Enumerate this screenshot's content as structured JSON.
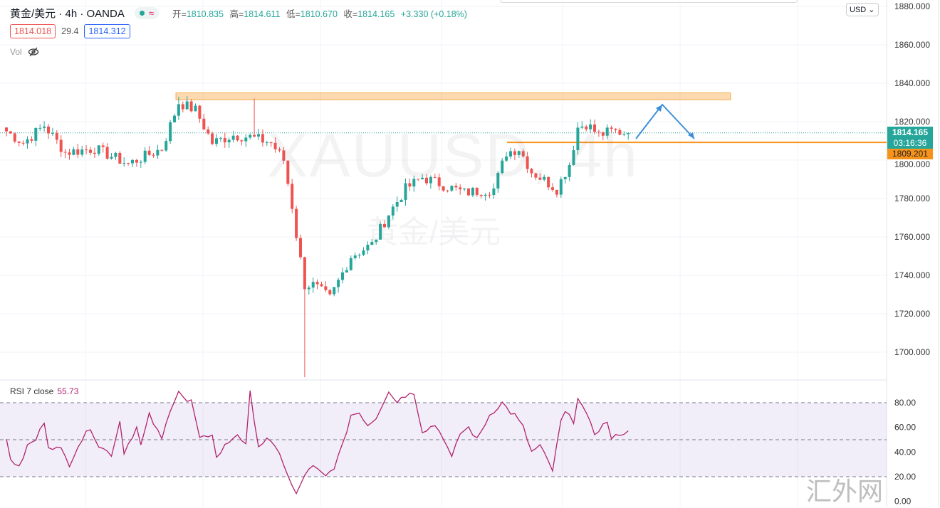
{
  "header": {
    "symbol": "黄金/美元 · 4h · OANDA",
    "open_label": "开=",
    "open": "1810.835",
    "high_label": "高=",
    "high": "1814.611",
    "low_label": "低=",
    "low": "1810.670",
    "close_label": "收=",
    "close": "1814.165",
    "change": "+3.330 (+0.18%)"
  },
  "quote": {
    "bid": "1814.018",
    "spread": "29.4",
    "ask": "1814.312"
  },
  "volume": {
    "label": "Vol"
  },
  "rsi_legend": {
    "label": "RSI 7 close",
    "value": "55.73"
  },
  "currency": "USD ⌄",
  "price_tag": {
    "price": "1814.165",
    "countdown": "03:16:36"
  },
  "level_tag": "1809.201",
  "watermark": {
    "ticker": "XAUUSD, 4h",
    "name": "黄金/美元"
  },
  "site_mark": "汇外网",
  "colors": {
    "up": "#26a69a",
    "down": "#ef5350",
    "level": "#f7931a",
    "rsi": "#b0246e",
    "arrow": "#3d8fd9"
  },
  "chart_data": [
    {
      "type": "candlestick",
      "title": "XAUUSD 4h",
      "y_ticks": [
        1700,
        1720,
        1740,
        1760,
        1780,
        1800,
        1820,
        1840,
        1860,
        1880
      ],
      "y_tick_labels": [
        "1700.000",
        "1720.000",
        "1740.000",
        "1760.000",
        "1780.000",
        "1800.000",
        "1820.000",
        "1840.000",
        "1860.000",
        "1880.000"
      ],
      "ylim": [
        1690,
        1880
      ],
      "bars": 150,
      "close_keypoints": [
        [
          0,
          1815
        ],
        [
          4,
          1809
        ],
        [
          9,
          1818
        ],
        [
          14,
          1804
        ],
        [
          21,
          1806
        ],
        [
          29,
          1798
        ],
        [
          37,
          1806
        ],
        [
          41,
          1830
        ],
        [
          45,
          1826
        ],
        [
          49,
          1809
        ],
        [
          54,
          1813
        ],
        [
          58,
          1812
        ],
        [
          63,
          1809
        ],
        [
          66,
          1800
        ],
        [
          68,
          1776
        ],
        [
          69,
          1761
        ],
        [
          71,
          1735
        ],
        [
          73,
          1735
        ],
        [
          77,
          1728
        ],
        [
          82,
          1750
        ],
        [
          87,
          1756
        ],
        [
          91,
          1772
        ],
        [
          95,
          1785
        ],
        [
          99,
          1791
        ],
        [
          104,
          1787
        ],
        [
          109,
          1783
        ],
        [
          116,
          1785
        ],
        [
          119,
          1804
        ],
        [
          122,
          1806
        ],
        [
          125,
          1794
        ],
        [
          131,
          1785
        ],
        [
          134,
          1798
        ],
        [
          136,
          1817
        ],
        [
          138,
          1819
        ],
        [
          141,
          1813
        ],
        [
          144,
          1815
        ],
        [
          148,
          1814.165
        ]
      ],
      "spike_wicks": [
        [
          41,
          1833
        ],
        [
          59,
          1832
        ],
        [
          71,
          1687
        ]
      ],
      "resistance_zone": [
        1832.5,
        1835
      ],
      "support_level": 1809.201,
      "last_price": 1814.165
    },
    {
      "type": "line",
      "title": "RSI 7 close",
      "ylim": [
        0,
        100
      ],
      "y_ticks": [
        0,
        20,
        40,
        60,
        80
      ],
      "y_tick_labels": [
        "0.00",
        "20.00",
        "40.00",
        "60.00",
        "80.00"
      ],
      "band": [
        20,
        80
      ],
      "mid": 50,
      "keypoints": [
        [
          0,
          50
        ],
        [
          1,
          35
        ],
        [
          3,
          27
        ],
        [
          5,
          45
        ],
        [
          7,
          50
        ],
        [
          9,
          65
        ],
        [
          10,
          45
        ],
        [
          13,
          42
        ],
        [
          15,
          30
        ],
        [
          17,
          45
        ],
        [
          20,
          60
        ],
        [
          22,
          45
        ],
        [
          25,
          38
        ],
        [
          27,
          65
        ],
        [
          28,
          40
        ],
        [
          31,
          60
        ],
        [
          32,
          45
        ],
        [
          34,
          70
        ],
        [
          37,
          50
        ],
        [
          39,
          75
        ],
        [
          41,
          90
        ],
        [
          43,
          80
        ],
        [
          44,
          82
        ],
        [
          46,
          50
        ],
        [
          49,
          55
        ],
        [
          50,
          35
        ],
        [
          52,
          45
        ],
        [
          55,
          55
        ],
        [
          57,
          45
        ],
        [
          58,
          88
        ],
        [
          60,
          45
        ],
        [
          62,
          50
        ],
        [
          65,
          40
        ],
        [
          67,
          20
        ],
        [
          69,
          5
        ],
        [
          71,
          22
        ],
        [
          73,
          28
        ],
        [
          76,
          20
        ],
        [
          78,
          28
        ],
        [
          80,
          45
        ],
        [
          82,
          70
        ],
        [
          84,
          72
        ],
        [
          86,
          62
        ],
        [
          88,
          68
        ],
        [
          91,
          90
        ],
        [
          93,
          80
        ],
        [
          94,
          85
        ],
        [
          97,
          88
        ],
        [
          99,
          57
        ],
        [
          102,
          62
        ],
        [
          104,
          52
        ],
        [
          106,
          35
        ],
        [
          108,
          55
        ],
        [
          110,
          60
        ],
        [
          112,
          50
        ],
        [
          115,
          70
        ],
        [
          118,
          80
        ],
        [
          120,
          72
        ],
        [
          121,
          70
        ],
        [
          123,
          60
        ],
        [
          125,
          40
        ],
        [
          127,
          45
        ],
        [
          130,
          25
        ],
        [
          132,
          65
        ],
        [
          133,
          72
        ],
        [
          135,
          65
        ],
        [
          136,
          85
        ],
        [
          138,
          70
        ],
        [
          140,
          55
        ],
        [
          143,
          65
        ],
        [
          144,
          50
        ],
        [
          146,
          55
        ],
        [
          148,
          56
        ]
      ]
    }
  ]
}
